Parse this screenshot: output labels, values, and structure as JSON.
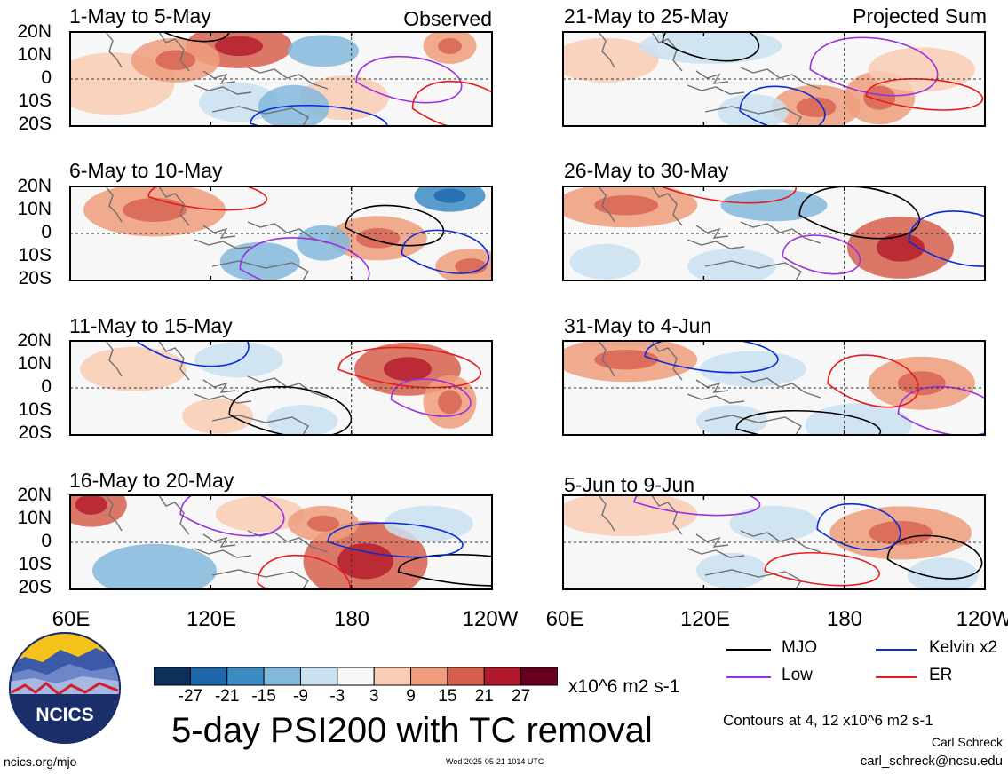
{
  "panels": [
    {
      "title": "1-May to 5-May",
      "tag": "Observed"
    },
    {
      "title": "6-May to 10-May",
      "tag": ""
    },
    {
      "title": "11-May to 15-May",
      "tag": ""
    },
    {
      "title": "16-May to 20-May",
      "tag": ""
    },
    {
      "title": "21-May to 25-May",
      "tag": "Projected Sum"
    },
    {
      "title": "26-May to 30-May",
      "tag": ""
    },
    {
      "title": "31-May to 4-Jun",
      "tag": ""
    },
    {
      "title": "5-Jun to 9-Jun",
      "tag": ""
    }
  ],
  "lat_labels": [
    "20N",
    "10N",
    "0",
    "10S",
    "20S"
  ],
  "lon_labels": [
    "60E",
    "120E",
    "180",
    "120W"
  ],
  "colorbar": {
    "ticks": [
      "-27",
      "-21",
      "-15",
      "-9",
      "-3",
      "3",
      "9",
      "15",
      "21",
      "27"
    ],
    "colors": [
      "#0c2f5c",
      "#1d66ab",
      "#3b8cc2",
      "#84b9dc",
      "#c9e1f0",
      "#f7f7f7",
      "#f9cdb4",
      "#ef9e7d",
      "#d6604d",
      "#b2182b",
      "#67001f"
    ],
    "units": "x10^6 m2 s-1"
  },
  "main_title": "5-day PSI200 with TC removal",
  "legend": [
    {
      "label": "MJO",
      "color": "#000000"
    },
    {
      "label": "Kelvin x2",
      "color": "#0a2bd6"
    },
    {
      "label": "Low",
      "color": "#9b30e0"
    },
    {
      "label": "ER",
      "color": "#e61b1b"
    }
  ],
  "contours_note": "Contours at 4, 12 x10^6 m2 s-1",
  "author": "Carl Schreck",
  "email": "carl_schreck@ncsu.edu",
  "url": "ncics.org/mjo",
  "timestamp": "Wed 2025-05-21 1014 UTC",
  "logo_text": "NCICS",
  "chart_data": {
    "type": "heatmap",
    "title": "5-day PSI200 with TC removal",
    "variable": "200-hPa streamfunction anomaly (TC removed)",
    "units": "x10^6 m2 s-1",
    "color_levels": [
      -27,
      -21,
      -15,
      -9,
      -3,
      3,
      9,
      15,
      21,
      27
    ],
    "contour_levels": [
      4,
      12
    ],
    "contour_series": [
      "MJO",
      "Kelvin x2",
      "Low",
      "ER"
    ],
    "lon_range": [
      "60E",
      "120W"
    ],
    "lat_range": [
      "20S",
      "20N"
    ],
    "lon_ticks": [
      "60E",
      "120E",
      "180",
      "120W"
    ],
    "lat_ticks": [
      "20N",
      "10N",
      "0",
      "10S",
      "20S"
    ],
    "periods_observed": [
      "1-May to 5-May",
      "6-May to 10-May",
      "11-May to 15-May",
      "16-May to 20-May"
    ],
    "periods_projected": [
      "21-May to 25-May",
      "26-May to 30-May",
      "31-May to 4-Jun",
      "5-Jun to 9-Jun"
    ]
  }
}
